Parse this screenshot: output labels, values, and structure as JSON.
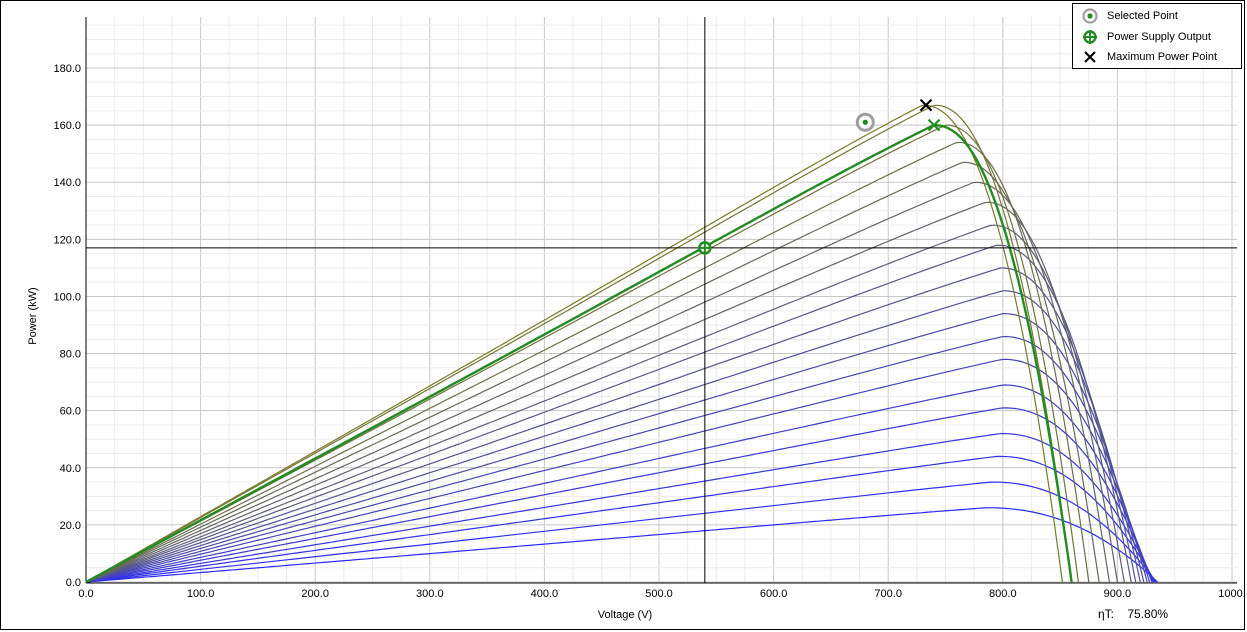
{
  "chart_data": {
    "type": "line",
    "xlabel": "Voltage (V)",
    "ylabel": "Power (kW)",
    "xlim": [
      0,
      1000
    ],
    "ylim": [
      0,
      180
    ],
    "x_ticks": [
      "0.0",
      "100.0",
      "200.0",
      "300.0",
      "400.0",
      "500.0",
      "600.0",
      "700.0",
      "800.0",
      "900.0",
      "1000."
    ],
    "y_ticks": [
      "0.0",
      "20.0",
      "40.0",
      "60.0",
      "80.0",
      "100.0",
      "120.0",
      "140.0",
      "160.0",
      "180.0"
    ],
    "grid": true,
    "legend_position": "top-right",
    "legend": [
      {
        "label": "Selected Point",
        "icon": "circle-dot-icon"
      },
      {
        "label": "Power Supply Output",
        "icon": "crosshair-circle-icon"
      },
      {
        "label": "Maximum Power Point",
        "icon": "x-mark-icon"
      }
    ],
    "curve_family": {
      "count": 20,
      "max_power_kw": [
        26,
        35,
        44,
        52,
        61,
        69,
        78,
        86,
        94,
        102,
        110,
        118,
        125,
        133,
        140,
        147,
        154,
        160,
        167,
        167
      ],
      "max_power_voltage_v": [
        785,
        790,
        795,
        798,
        800,
        800,
        800,
        800,
        800,
        800,
        798,
        795,
        790,
        785,
        775,
        765,
        760,
        750,
        740,
        730
      ],
      "open_circuit_voltage_v": [
        935,
        934,
        933,
        932,
        931,
        930,
        928,
        926,
        923,
        920,
        916,
        912,
        906,
        900,
        893,
        884,
        875,
        866,
        860,
        852
      ],
      "color_low": "#2a2aff",
      "color_high": "#7a7a2a"
    },
    "selected_curve": {
      "max_power_kw": 160,
      "max_power_voltage_v": 740,
      "open_circuit_voltage_v": 860,
      "color": "#228b22"
    },
    "selected_point": {
      "x": 680,
      "y": 161
    },
    "power_supply_output": {
      "x": 540,
      "y": 117
    },
    "maximum_power_point": {
      "x": 733,
      "y": 167
    },
    "selected_curve_mpp": {
      "x": 740,
      "y": 160
    },
    "crosshair": {
      "x": 540,
      "y": 117
    }
  },
  "efficiency": {
    "label": "ηT:",
    "value": "75.80%"
  },
  "colors": {
    "green": "#228b22",
    "grid": "#d3d3d3",
    "axis": "#000000"
  }
}
